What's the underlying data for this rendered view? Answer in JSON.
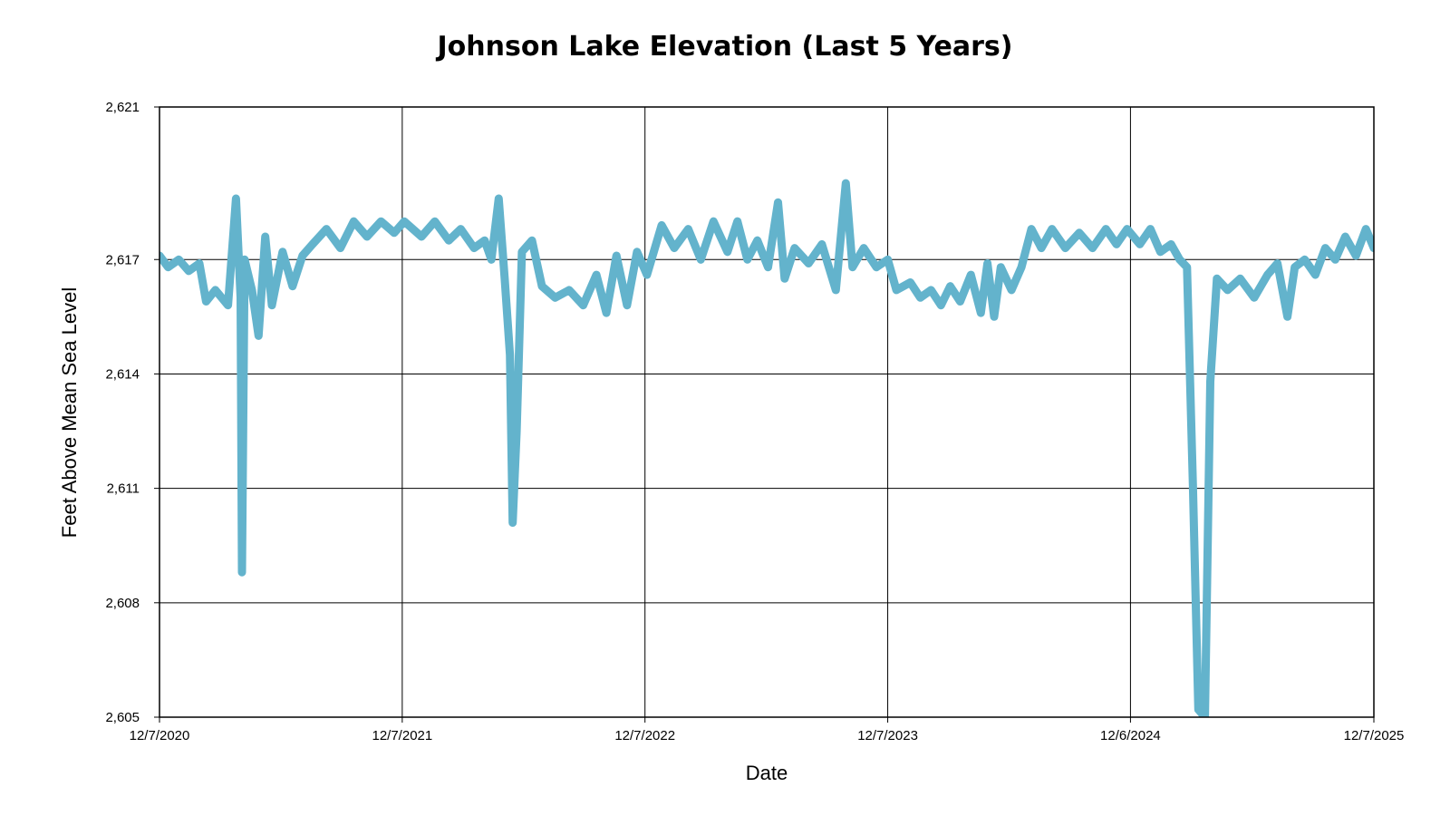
{
  "chart_data": {
    "type": "line",
    "title": "Johnson Lake Elevation (Last 5 Years)",
    "xlabel": "Date",
    "ylabel": "Feet Above Mean Sea Level",
    "x_ticks": [
      "12/7/2020",
      "12/7/2021",
      "12/7/2022",
      "12/7/2023",
      "12/6/2024",
      "12/7/2025"
    ],
    "y_ticks": [
      "2,605",
      "2,608",
      "2,611",
      "2,614",
      "2,617",
      "2,621"
    ],
    "xlim": [
      "2020-12-07",
      "2025-12-07"
    ],
    "ylim": [
      2605,
      2621
    ],
    "grid": true,
    "legend": "none",
    "series": [
      {
        "color": "#63b3cc",
        "points": [
          [
            "2020-12-07",
            2617.1
          ],
          [
            "2020-12-20",
            2616.8
          ],
          [
            "2021-01-05",
            2617.0
          ],
          [
            "2021-01-20",
            2616.7
          ],
          [
            "2021-02-05",
            2616.9
          ],
          [
            "2021-02-15",
            2615.9
          ],
          [
            "2021-03-01",
            2616.2
          ],
          [
            "2021-03-20",
            2615.8
          ],
          [
            "2021-04-01",
            2618.6
          ],
          [
            "2021-04-08",
            2616.0
          ],
          [
            "2021-04-10",
            2608.8
          ],
          [
            "2021-04-14",
            2617.0
          ],
          [
            "2021-04-25",
            2616.2
          ],
          [
            "2021-05-05",
            2615.0
          ],
          [
            "2021-05-15",
            2617.6
          ],
          [
            "2021-05-25",
            2615.8
          ],
          [
            "2021-06-10",
            2617.2
          ],
          [
            "2021-06-25",
            2616.3
          ],
          [
            "2021-07-10",
            2617.1
          ],
          [
            "2021-07-25",
            2617.4
          ],
          [
            "2021-08-15",
            2617.8
          ],
          [
            "2021-09-05",
            2617.3
          ],
          [
            "2021-09-25",
            2618.0
          ],
          [
            "2021-10-15",
            2617.6
          ],
          [
            "2021-11-05",
            2618.0
          ],
          [
            "2021-11-25",
            2617.7
          ],
          [
            "2021-12-10",
            2618.0
          ],
          [
            "2022-01-05",
            2617.6
          ],
          [
            "2022-01-25",
            2618.0
          ],
          [
            "2022-02-15",
            2617.5
          ],
          [
            "2022-03-05",
            2617.8
          ],
          [
            "2022-03-25",
            2617.3
          ],
          [
            "2022-04-10",
            2617.5
          ],
          [
            "2022-04-20",
            2617.0
          ],
          [
            "2022-05-01",
            2618.6
          ],
          [
            "2022-05-10",
            2616.5
          ],
          [
            "2022-05-18",
            2614.5
          ],
          [
            "2022-05-22",
            2610.1
          ],
          [
            "2022-05-28",
            2612.5
          ],
          [
            "2022-06-05",
            2617.2
          ],
          [
            "2022-06-20",
            2617.5
          ],
          [
            "2022-07-05",
            2616.3
          ],
          [
            "2022-07-25",
            2616.0
          ],
          [
            "2022-08-15",
            2616.2
          ],
          [
            "2022-09-05",
            2615.8
          ],
          [
            "2022-09-25",
            2616.6
          ],
          [
            "2022-10-10",
            2615.6
          ],
          [
            "2022-10-25",
            2617.1
          ],
          [
            "2022-11-10",
            2615.8
          ],
          [
            "2022-11-25",
            2617.2
          ],
          [
            "2022-12-10",
            2616.6
          ],
          [
            "2023-01-01",
            2617.9
          ],
          [
            "2023-01-20",
            2617.3
          ],
          [
            "2023-02-10",
            2617.8
          ],
          [
            "2023-03-01",
            2617.0
          ],
          [
            "2023-03-20",
            2618.0
          ],
          [
            "2023-04-10",
            2617.2
          ],
          [
            "2023-04-25",
            2618.0
          ],
          [
            "2023-05-10",
            2617.0
          ],
          [
            "2023-05-25",
            2617.5
          ],
          [
            "2023-06-10",
            2616.8
          ],
          [
            "2023-06-25",
            2618.5
          ],
          [
            "2023-07-05",
            2616.5
          ],
          [
            "2023-07-20",
            2617.3
          ],
          [
            "2023-08-10",
            2616.9
          ],
          [
            "2023-08-30",
            2617.4
          ],
          [
            "2023-09-20",
            2616.2
          ],
          [
            "2023-10-05",
            2619.0
          ],
          [
            "2023-10-15",
            2616.8
          ],
          [
            "2023-11-01",
            2617.3
          ],
          [
            "2023-11-20",
            2616.8
          ],
          [
            "2023-12-07",
            2617.0
          ],
          [
            "2023-12-20",
            2616.2
          ],
          [
            "2024-01-10",
            2616.4
          ],
          [
            "2024-01-25",
            2616.0
          ],
          [
            "2024-02-10",
            2616.2
          ],
          [
            "2024-02-25",
            2615.8
          ],
          [
            "2024-03-10",
            2616.3
          ],
          [
            "2024-03-25",
            2615.9
          ],
          [
            "2024-04-10",
            2616.6
          ],
          [
            "2024-04-25",
            2615.6
          ],
          [
            "2024-05-05",
            2616.9
          ],
          [
            "2024-05-15",
            2615.5
          ],
          [
            "2024-05-25",
            2616.8
          ],
          [
            "2024-06-10",
            2616.2
          ],
          [
            "2024-06-25",
            2616.8
          ],
          [
            "2024-07-10",
            2617.8
          ],
          [
            "2024-07-25",
            2617.3
          ],
          [
            "2024-08-10",
            2617.8
          ],
          [
            "2024-08-30",
            2617.3
          ],
          [
            "2024-09-20",
            2617.7
          ],
          [
            "2024-10-10",
            2617.3
          ],
          [
            "2024-10-30",
            2617.8
          ],
          [
            "2024-11-15",
            2617.4
          ],
          [
            "2024-12-01",
            2617.8
          ],
          [
            "2024-12-20",
            2617.4
          ],
          [
            "2025-01-05",
            2617.8
          ],
          [
            "2025-01-20",
            2617.2
          ],
          [
            "2025-02-05",
            2617.4
          ],
          [
            "2025-02-18",
            2617.0
          ],
          [
            "2025-03-01",
            2616.8
          ],
          [
            "2025-03-10",
            2611.0
          ],
          [
            "2025-03-18",
            2605.2
          ],
          [
            "2025-03-28",
            2605.0
          ],
          [
            "2025-04-05",
            2613.8
          ],
          [
            "2025-04-15",
            2616.5
          ],
          [
            "2025-05-01",
            2616.2
          ],
          [
            "2025-05-20",
            2616.5
          ],
          [
            "2025-06-10",
            2616.0
          ],
          [
            "2025-06-30",
            2616.6
          ],
          [
            "2025-07-15",
            2616.9
          ],
          [
            "2025-07-30",
            2615.5
          ],
          [
            "2025-08-10",
            2616.8
          ],
          [
            "2025-08-25",
            2617.0
          ],
          [
            "2025-09-10",
            2616.6
          ],
          [
            "2025-09-25",
            2617.3
          ],
          [
            "2025-10-10",
            2617.0
          ],
          [
            "2025-10-25",
            2617.6
          ],
          [
            "2025-11-10",
            2617.1
          ],
          [
            "2025-11-25",
            2617.8
          ],
          [
            "2025-12-07",
            2617.3
          ]
        ]
      }
    ]
  }
}
